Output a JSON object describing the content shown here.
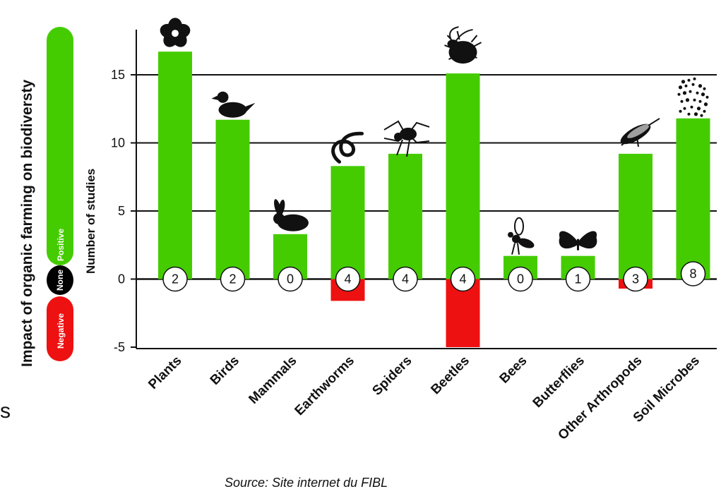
{
  "colors": {
    "positive": "#44cc00",
    "none": "#000000",
    "negative": "#ee1111"
  },
  "legend": {
    "title": "Impact of organic farming on biodiversty",
    "positive": "Positive",
    "none": "None",
    "negative": "Negative"
  },
  "stray_text": "s",
  "source_text": "Source: Site internet du FIBL",
  "chart_data": {
    "type": "bar",
    "ylabel": "Number of studies",
    "ylim": [
      -5,
      18
    ],
    "yticks": [
      -5,
      0,
      5,
      10,
      15
    ],
    "grid": "horizontal",
    "categories": [
      "Plants",
      "Birds",
      "Mammals",
      "Earthworms",
      "Spiders",
      "Beetles",
      "Bees",
      "Butterflies",
      "Other Arthropods",
      "Soil Microbes"
    ],
    "series": [
      {
        "name": "Positive",
        "values": [
          16.7,
          11.7,
          3.3,
          8.3,
          9.2,
          15.1,
          1.7,
          1.7,
          9.2,
          11.8
        ]
      },
      {
        "name": "Negative",
        "values": [
          0,
          0,
          0,
          -1.6,
          0,
          -5,
          0,
          0,
          -0.7,
          0
        ]
      }
    ],
    "none_counts": [
      "2",
      "2",
      "0",
      "4",
      "4",
      "4",
      "0",
      "1",
      "3",
      "8"
    ],
    "icons": [
      "flower-icon",
      "duck-icon",
      "rabbit-icon",
      "worm-icon",
      "spider-icon",
      "beetle-icon",
      "bee-icon",
      "butterfly-icon",
      "arthropod-icon",
      "microbes-icon"
    ]
  }
}
